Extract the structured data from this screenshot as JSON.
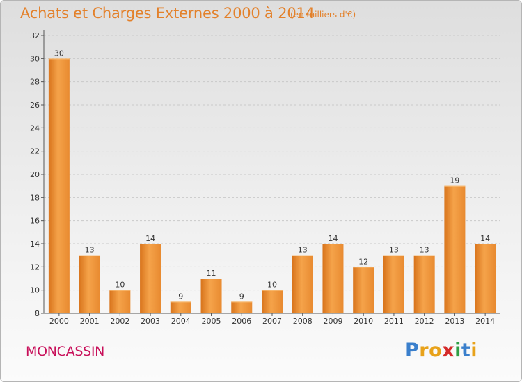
{
  "header": {
    "title": "Achats et Charges Externes 2000 à 2014",
    "subtitle": "(en milliers d'€)"
  },
  "footer": {
    "city": "MONCASSIN",
    "logo": {
      "letters": [
        "P",
        "r",
        "o",
        "x",
        "i",
        "t",
        "i"
      ],
      "colors": [
        "#3a7fcc",
        "#e8a21a",
        "#e8a21a",
        "#d42a2a",
        "#2f9e44",
        "#3a7fcc",
        "#e8a21a"
      ]
    }
  },
  "colors": {
    "bar_light": "#f5a34a",
    "bar_dark": "#d8741c",
    "grid": "#c9c9c9",
    "title": "#e3812b",
    "city": "#c8105a"
  },
  "chart_data": {
    "type": "bar",
    "title": "Achats et Charges Externes 2000 à 2014",
    "subtitle": "(en milliers d'€)",
    "xlabel": "",
    "ylabel": "",
    "categories": [
      "2000",
      "2001",
      "2002",
      "2003",
      "2004",
      "2005",
      "2006",
      "2007",
      "2008",
      "2009",
      "2010",
      "2011",
      "2012",
      "2013",
      "2014"
    ],
    "values": [
      30,
      13,
      10,
      14,
      9,
      11,
      9,
      10,
      13,
      14,
      12,
      13,
      13,
      19,
      14
    ],
    "ylim": [
      8,
      32
    ],
    "yticks": [
      8,
      10,
      12,
      14,
      16,
      18,
      20,
      22,
      24,
      26,
      28,
      30,
      32
    ],
    "grid": true,
    "legend": "none"
  }
}
